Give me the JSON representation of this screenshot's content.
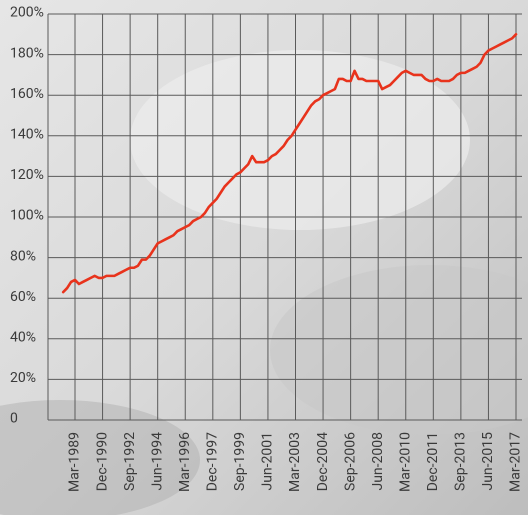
{
  "chart_data": {
    "type": "line",
    "categories": [
      null,
      null,
      null,
      "Mar-1989",
      null,
      null,
      null,
      null,
      null,
      null,
      "Dec-1990",
      null,
      null,
      null,
      null,
      null,
      null,
      "Sep-1992",
      null,
      null,
      null,
      null,
      null,
      null,
      "Jun-1994",
      null,
      null,
      null,
      null,
      null,
      null,
      "Mar-1996",
      null,
      null,
      null,
      null,
      null,
      null,
      "Dec-1997",
      null,
      null,
      null,
      null,
      null,
      null,
      "Sep-1999",
      null,
      null,
      null,
      null,
      null,
      null,
      "Jun-2001",
      null,
      null,
      null,
      null,
      null,
      null,
      "Mar-2003",
      null,
      null,
      null,
      null,
      null,
      null,
      "Dec-2004",
      null,
      null,
      null,
      null,
      null,
      null,
      "Sep-2006",
      null,
      null,
      null,
      null,
      null,
      null,
      "Jun-2008",
      null,
      null,
      null,
      null,
      null,
      null,
      "Mar-2010",
      null,
      null,
      null,
      null,
      null,
      null,
      "Dec-2011",
      null,
      null,
      null,
      null,
      null,
      null,
      "Sep-2013",
      null,
      null,
      null,
      null,
      null,
      null,
      "Jun-2015",
      null,
      null,
      null,
      null,
      null,
      null,
      "Mar-2017"
    ],
    "series": [
      {
        "color": "#e8331c",
        "values": [
          63,
          65,
          68,
          69,
          67,
          68,
          69,
          70,
          71,
          70,
          70,
          71,
          71,
          71,
          72,
          73,
          74,
          75,
          75,
          76,
          79,
          79,
          81,
          84,
          87,
          88,
          89,
          90,
          91,
          93,
          94,
          95,
          96,
          98,
          99,
          100,
          102,
          105,
          107,
          109,
          112,
          115,
          117,
          119,
          121,
          122,
          124,
          126,
          130,
          127,
          127,
          127,
          128,
          130,
          131,
          133,
          135,
          138,
          140,
          143,
          146,
          149,
          152,
          155,
          157,
          158,
          160,
          161,
          162,
          163,
          168,
          168,
          167,
          167,
          172,
          168,
          168,
          167,
          167,
          167,
          167,
          163,
          164,
          165,
          167,
          169,
          171,
          172,
          171,
          170,
          170,
          170,
          168,
          167,
          167,
          168,
          167,
          167,
          167,
          168,
          170,
          171,
          171,
          172,
          173,
          174,
          176,
          180,
          182,
          183,
          184,
          185,
          186,
          187,
          188,
          190
        ]
      }
    ],
    "ylim": [
      0,
      200
    ],
    "yticks": [
      0,
      {
        "value": 20,
        "label": "20%"
      },
      {
        "value": 40,
        "label": "40%"
      },
      {
        "value": 60,
        "label": "60%"
      },
      {
        "value": 80,
        "label": "80%"
      },
      {
        "value": 100,
        "label": "100%"
      },
      {
        "value": 120,
        "label": "120%"
      },
      {
        "value": 140,
        "label": "140%"
      },
      {
        "value": 160,
        "label": "160%"
      },
      {
        "value": 180,
        "label": "180%"
      },
      {
        "value": 200,
        "label": "200%"
      }
    ],
    "grid": true
  }
}
